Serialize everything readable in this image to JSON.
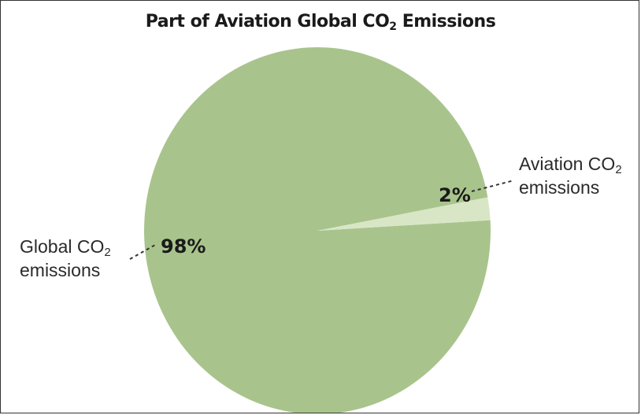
{
  "chart_data": {
    "type": "pie",
    "title": "Part of Aviation Global CO2 Emissions",
    "title_parts": {
      "main": "Part of Aviation Global CO",
      "subscript": "2",
      "tail": " Emissions"
    },
    "slices": [
      {
        "label_line1": "Global CO",
        "label_line1_sub": "2",
        "label_line2": "emissions",
        "value": 98,
        "value_label": "98%",
        "color": "#a8c48c"
      },
      {
        "label_line1": "Aviation CO",
        "label_line1_sub": "2",
        "label_line2": "emissions",
        "value": 2,
        "value_label": "2%",
        "color": "#d8e6c6"
      }
    ],
    "legend": "none",
    "grid": false
  }
}
